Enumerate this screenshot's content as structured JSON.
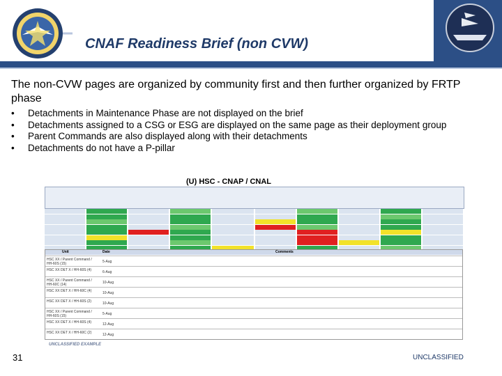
{
  "header": {
    "title": "CNAF Readiness Brief (non CVW)",
    "left_logo": "naval-air-forces-seal",
    "right_logo": "carrier-aircraft-emblem"
  },
  "intro": "The non-CVW pages are organized by community first and then further organized by FRTP phase",
  "bullets": [
    "Detachments in Maintenance Phase are not displayed on the brief",
    "Detachments assigned to a CSG or ESG are displayed on the same page as their deployment group",
    "Parent Commands are also displayed along with their detachments",
    "Detachments do not have a P-pillar"
  ],
  "table_title": "(U) HSC - CNAP / CNAL",
  "lower_table_headers": [
    "Unit",
    "Date",
    "Comments"
  ],
  "lower_rows": [
    {
      "unit": "HSC XX / Parent Command / HH-60S (15)",
      "date": "5-Aug"
    },
    {
      "unit": "HSC XX DET X / HH-60S (4)",
      "date": "6-Aug"
    },
    {
      "unit": "HSC XX / Parent Command / HH-60C (14)",
      "date": "10-Aug"
    },
    {
      "unit": "HSC XX DET X / HH-60C (4)",
      "date": "10-Aug"
    },
    {
      "unit": "HSC XX DET X / HH-60S (2)",
      "date": "10-Aug"
    },
    {
      "unit": "HSC XX / Parent Command / HH-60S (15)",
      "date": "5-Aug"
    },
    {
      "unit": "HSC XX DET X / HH-60S (4)",
      "date": "12-Aug"
    },
    {
      "unit": "HSC XX DET X / HH-60C (2)",
      "date": "12-Aug"
    }
  ],
  "unclassified_example": "UNCLASSIFIED EXAMPLE",
  "page_number": "31",
  "classification": "UNCLASSIFIED",
  "colors": {
    "brand": "#1f3a68",
    "bar": "#2c4f86",
    "green": "#2fa84f",
    "yellow": "#f2e22a",
    "red": "#e02020"
  }
}
